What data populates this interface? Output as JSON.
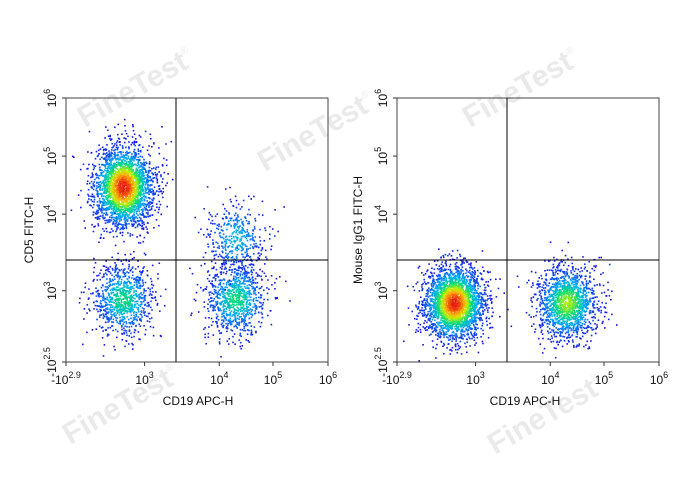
{
  "watermark": {
    "text": "FineTest",
    "mark": "®"
  },
  "chart_data": [
    {
      "type": "scatter",
      "style": "flow cytometry pseudocolor dot plot with quadrant gates",
      "xlabel": "CD19 APC-H",
      "ylabel": "CD5 FITC-H",
      "x_scale": "biexponential",
      "y_scale": "biexponential",
      "x_ticks": [
        {
          "base": "-10",
          "exp": "2.9"
        },
        {
          "base": "10",
          "exp": "3"
        },
        {
          "base": "10",
          "exp": "4"
        },
        {
          "base": "10",
          "exp": "5"
        },
        {
          "base": "10",
          "exp": "6"
        }
      ],
      "y_ticks": [
        {
          "base": "-10",
          "exp": "2.5"
        },
        {
          "base": "10",
          "exp": "3"
        },
        {
          "base": "10",
          "exp": "4"
        },
        {
          "base": "10",
          "exp": "5"
        },
        {
          "base": "10",
          "exp": "6"
        }
      ],
      "xlim_log10": [
        -2.9,
        6
      ],
      "ylim_log10": [
        -2.5,
        6
      ],
      "quadrant_gate": {
        "x": 3000,
        "y": 2000
      },
      "populations": [
        {
          "name": "CD5+ CD19-",
          "x": 500,
          "y": 30000,
          "density": "very high"
        },
        {
          "name": "CD5- CD19-",
          "x": 500,
          "y": 800,
          "density": "medium"
        },
        {
          "name": "CD5- CD19+",
          "x": 20000,
          "y": 800,
          "density": "medium"
        },
        {
          "name": "CD5dim CD19+",
          "x": 20000,
          "y": 5000,
          "density": "low"
        }
      ]
    },
    {
      "type": "scatter",
      "style": "flow cytometry pseudocolor dot plot with quadrant gates",
      "xlabel": "CD19 APC-H",
      "ylabel": "Mouse IgG1 FITC-H",
      "x_scale": "biexponential",
      "y_scale": "biexponential",
      "x_ticks": [
        {
          "base": "-10",
          "exp": "2.9"
        },
        {
          "base": "10",
          "exp": "3"
        },
        {
          "base": "10",
          "exp": "4"
        },
        {
          "base": "10",
          "exp": "5"
        },
        {
          "base": "10",
          "exp": "6"
        }
      ],
      "y_ticks": [
        {
          "base": "-10",
          "exp": "2.5"
        },
        {
          "base": "10",
          "exp": "3"
        },
        {
          "base": "10",
          "exp": "4"
        },
        {
          "base": "10",
          "exp": "5"
        },
        {
          "base": "10",
          "exp": "6"
        }
      ],
      "xlim_log10": [
        -2.9,
        6
      ],
      "ylim_log10": [
        -2.5,
        6
      ],
      "quadrant_gate": {
        "x": 3000,
        "y": 2000
      },
      "populations": [
        {
          "name": "IgG1- CD19-",
          "x": 500,
          "y": 700,
          "density": "very high"
        },
        {
          "name": "IgG1- CD19+",
          "x": 20000,
          "y": 700,
          "density": "high"
        }
      ]
    }
  ]
}
